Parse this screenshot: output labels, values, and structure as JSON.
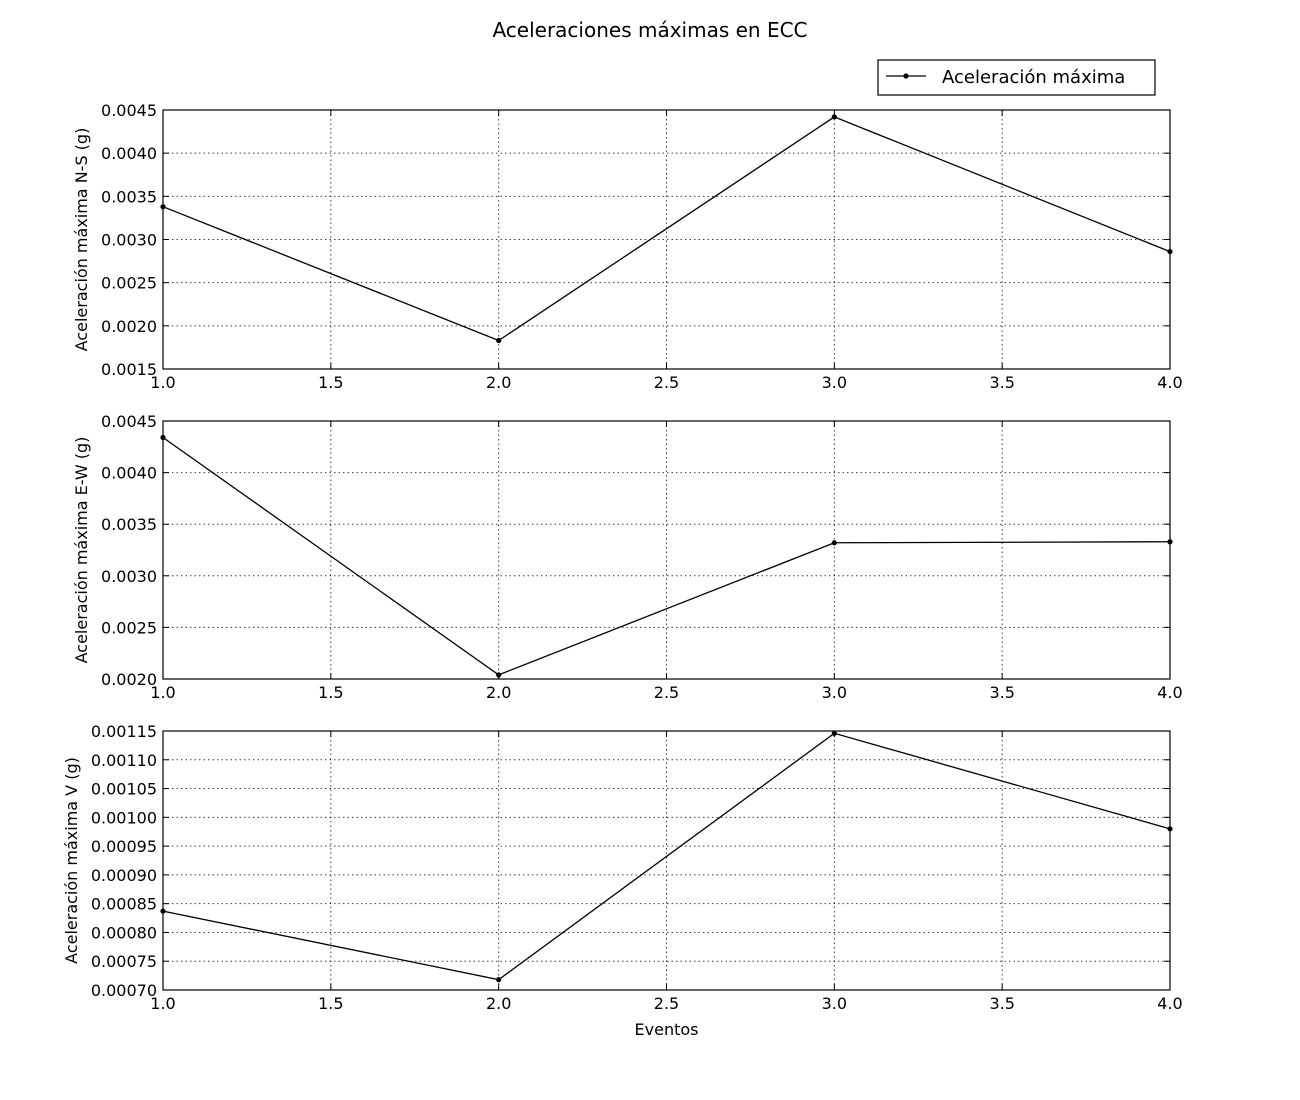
{
  "chart_data": {
    "type": "line",
    "title": "Aceleraciones máximas en ECC",
    "legend": {
      "entry": "Aceleración máxima",
      "placement": "top-right",
      "marker": "point",
      "color": "#000000"
    },
    "grid": true,
    "panels": [
      {
        "ylabel": "Aceleración máxima N-S (g)",
        "xlabel": "",
        "x": [
          1.0,
          2.0,
          3.0,
          4.0
        ],
        "y": [
          0.00338,
          0.00183,
          0.00442,
          0.00286
        ],
        "xlim": [
          1.0,
          4.0
        ],
        "ylim": [
          0.0015,
          0.0045
        ],
        "xticks": [
          "1.0",
          "1.5",
          "2.0",
          "2.5",
          "3.0",
          "3.5",
          "4.0"
        ],
        "yticks": [
          "0.0015",
          "0.0020",
          "0.0025",
          "0.0030",
          "0.0035",
          "0.0040",
          "0.0045"
        ]
      },
      {
        "ylabel": "Aceleración máxima E-W (g)",
        "xlabel": "",
        "x": [
          1.0,
          2.0,
          3.0,
          4.0
        ],
        "y": [
          0.00434,
          0.00204,
          0.00332,
          0.00333
        ],
        "xlim": [
          1.0,
          4.0
        ],
        "ylim": [
          0.002,
          0.0045
        ],
        "xticks": [
          "1.0",
          "1.5",
          "2.0",
          "2.5",
          "3.0",
          "3.5",
          "4.0"
        ],
        "yticks": [
          "0.0020",
          "0.0025",
          "0.0030",
          "0.0035",
          "0.0040",
          "0.0045"
        ]
      },
      {
        "ylabel": "Aceleración máxima V (g)",
        "xlabel": "Eventos",
        "x": [
          1.0,
          2.0,
          3.0,
          4.0
        ],
        "y": [
          0.000837,
          0.000718,
          0.001146,
          0.00098
        ],
        "xlim": [
          1.0,
          4.0
        ],
        "ylim": [
          0.0007,
          0.00115
        ],
        "xticks": [
          "1.0",
          "1.5",
          "2.0",
          "2.5",
          "3.0",
          "3.5",
          "4.0"
        ],
        "yticks": [
          "0.00070",
          "0.00075",
          "0.00080",
          "0.00085",
          "0.00090",
          "0.00095",
          "0.00100",
          "0.00105",
          "0.00110",
          "0.00115"
        ]
      }
    ]
  }
}
